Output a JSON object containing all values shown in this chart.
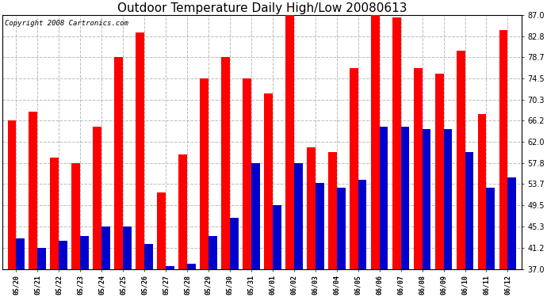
{
  "title": "Outdoor Temperature Daily High/Low 20080613",
  "copyright": "Copyright 2008 Cartronics.com",
  "dates": [
    "05/20",
    "05/21",
    "05/22",
    "05/23",
    "05/24",
    "05/25",
    "05/26",
    "05/27",
    "05/28",
    "05/29",
    "05/30",
    "05/31",
    "06/01",
    "06/02",
    "06/03",
    "06/04",
    "06/05",
    "06/06",
    "06/07",
    "06/08",
    "06/09",
    "06/10",
    "06/11",
    "06/12"
  ],
  "highs": [
    66.2,
    68.0,
    59.0,
    57.8,
    65.0,
    78.7,
    83.5,
    52.0,
    59.5,
    74.5,
    78.7,
    74.5,
    71.5,
    87.0,
    61.0,
    60.0,
    76.5,
    87.0,
    86.5,
    76.5,
    75.5,
    80.0,
    67.5,
    84.0
  ],
  "lows": [
    43.0,
    41.2,
    42.5,
    43.5,
    45.3,
    45.3,
    42.0,
    37.5,
    38.0,
    43.5,
    47.0,
    57.8,
    49.5,
    57.8,
    54.0,
    53.0,
    54.5,
    65.0,
    65.0,
    64.5,
    64.5,
    60.0,
    53.0,
    55.0
  ],
  "high_color": "#ff0000",
  "low_color": "#0000cc",
  "bg_color": "#ffffff",
  "grid_color": "#bbbbbb",
  "ymin": 37.0,
  "ymax": 87.0,
  "yticks": [
    37.0,
    41.2,
    45.3,
    49.5,
    53.7,
    57.8,
    62.0,
    66.2,
    70.3,
    74.5,
    78.7,
    82.8,
    87.0
  ],
  "title_fontsize": 11,
  "copyright_fontsize": 6.5,
  "bar_width": 0.4
}
